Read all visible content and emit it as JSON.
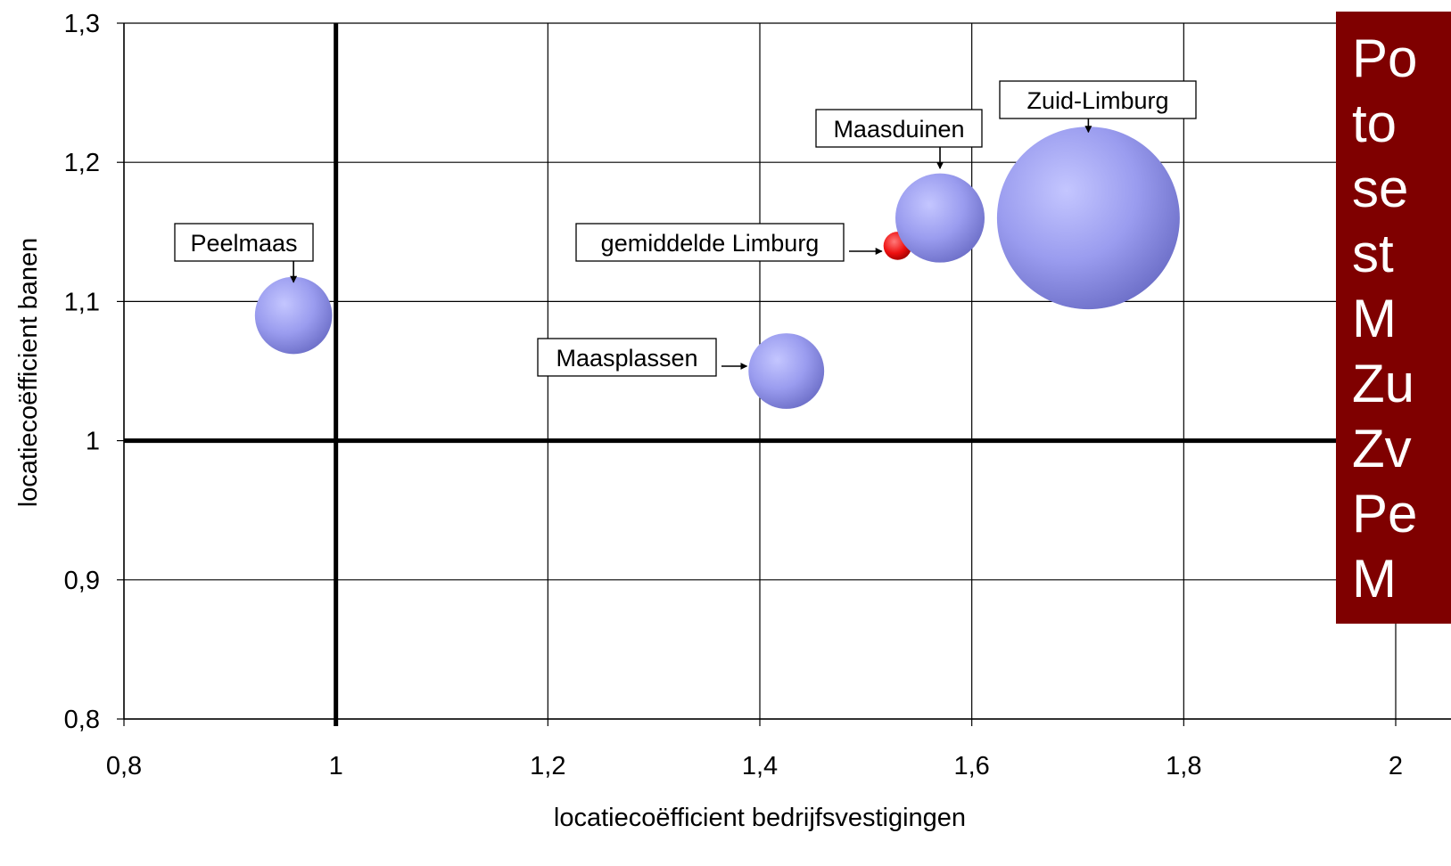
{
  "chart_data": {
    "type": "scatter",
    "subtype": "bubble",
    "xlabel": "locatiecoëfficient bedrijfsvestigingen",
    "ylabel": "locatiecoëfficient banen",
    "xlim": [
      0.8,
      2.0
    ],
    "ylim": [
      0.8,
      1.3
    ],
    "xticks": [
      0.8,
      1.0,
      1.2,
      1.4,
      1.6,
      1.8,
      2.0
    ],
    "xtick_labels": [
      "0,8",
      "1",
      "1,2",
      "1,4",
      "1,6",
      "1,8",
      "2"
    ],
    "yticks": [
      0.8,
      0.9,
      1.0,
      1.1,
      1.2,
      1.3
    ],
    "ytick_labels": [
      "0,8",
      "0,9",
      "1",
      "1,1",
      "1,2",
      "1,3"
    ],
    "grid": true,
    "reference_lines": {
      "x": 1.0,
      "y": 1.0
    },
    "bubble_color": "#8c8ee6",
    "highlight_color": "#e00000",
    "points": [
      {
        "label": "Peelmaas",
        "x": 0.96,
        "y": 1.09,
        "size": 0.75,
        "color": "#8c8ee6"
      },
      {
        "label": "Maasplassen",
        "x": 1.425,
        "y": 1.05,
        "size": 0.72,
        "color": "#8c8ee6"
      },
      {
        "label": "gemiddelde Limburg",
        "x": 1.53,
        "y": 1.14,
        "size": 0.1,
        "color": "#e00000"
      },
      {
        "label": "Maasduinen",
        "x": 1.57,
        "y": 1.16,
        "size": 1.0,
        "color": "#8c8ee6"
      },
      {
        "label": "Zuid-Limburg",
        "x": 1.71,
        "y": 1.16,
        "size": 4.2,
        "color": "#8c8ee6"
      }
    ]
  },
  "side_panel": {
    "background": "#7f0000",
    "lines": [
      "Po",
      "to",
      "se",
      "st",
      "M",
      "Zu",
      "Zv",
      "Pe",
      "M"
    ]
  }
}
